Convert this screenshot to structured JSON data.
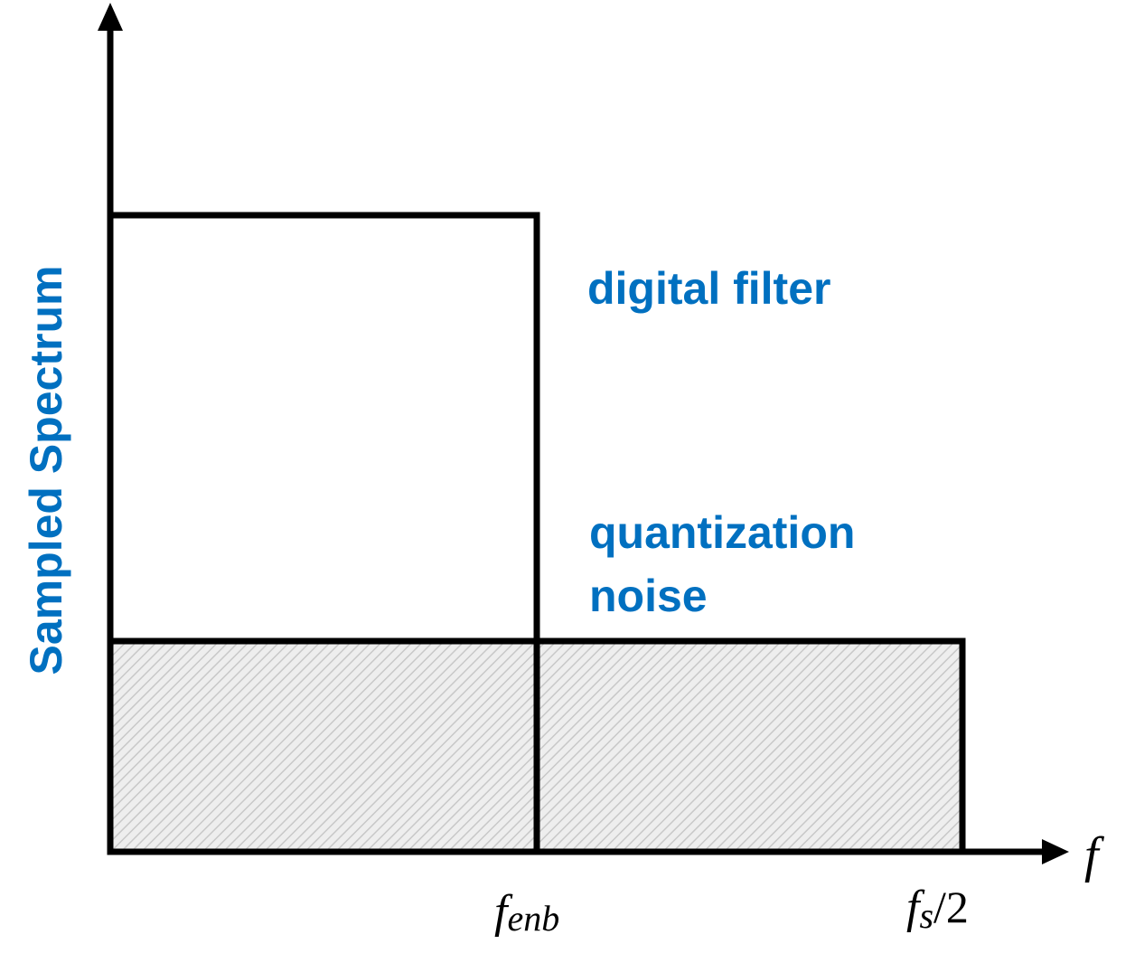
{
  "colors": {
    "accent_blue": "#0070C0",
    "stroke": "#000000",
    "hatch_fill": "#eeeeee",
    "hatch_line": "#c8c8c8"
  },
  "labels": {
    "y_axis": "Sampled Spectrum",
    "digital_filter": "digital filter",
    "noise_line1": "quantization",
    "noise_line2": "noise",
    "x_axis_var": "f",
    "f_enb_main": "f",
    "f_enb_sub": "enb",
    "fs_main": "f",
    "fs_sub": "s",
    "fs_tail": "/2"
  }
}
